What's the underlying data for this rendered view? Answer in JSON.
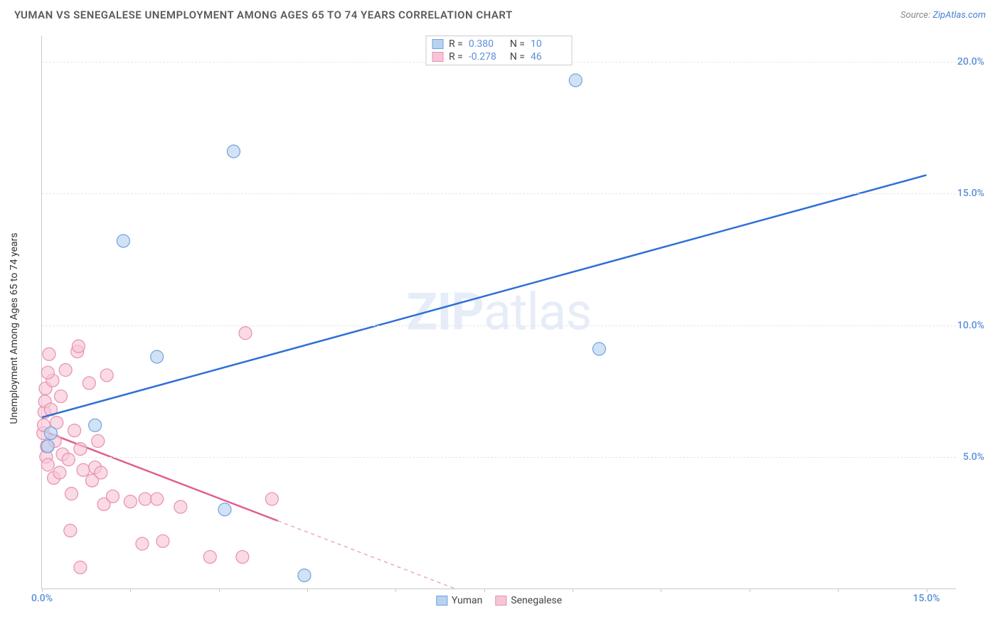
{
  "header": {
    "title": "YUMAN VS SENEGALESE UNEMPLOYMENT AMONG AGES 65 TO 74 YEARS CORRELATION CHART",
    "source_prefix": "Source: ",
    "source_link": "ZipAtlas.com"
  },
  "ylabel": "Unemployment Among Ages 65 to 74 years",
  "watermark_bold": "ZIP",
  "watermark_rest": "atlas",
  "chart": {
    "type": "scatter",
    "xlim": [
      0,
      15.5
    ],
    "ylim": [
      0,
      21
    ],
    "yticks": [
      {
        "v": 5.0,
        "label": "5.0%"
      },
      {
        "v": 10.0,
        "label": "10.0%"
      },
      {
        "v": 15.0,
        "label": "15.0%"
      },
      {
        "v": 20.0,
        "label": "20.0%"
      }
    ],
    "xticks_labeled": [
      {
        "v": 0.0,
        "label": "0.0%"
      },
      {
        "v": 15.0,
        "label": "15.0%"
      }
    ],
    "xticks_minor": [
      1.5,
      3.0,
      4.5,
      6.0,
      7.5,
      9.0,
      10.5,
      12.0,
      13.5
    ],
    "grid_color": "#e6e6e6",
    "axis_color": "#c8c8c8",
    "background_color": "#ffffff",
    "series": [
      {
        "name": "Yuman",
        "color_fill": "#b8d2f0",
        "color_stroke": "#6fa3e0",
        "line_color": "#2e6fd6",
        "r_value": "0.380",
        "n_value": "10",
        "marker_radius": 9,
        "trend": {
          "x1": 0.0,
          "y1": 6.5,
          "x2": 15.0,
          "y2": 15.7,
          "solid_until_x": 15.0
        },
        "points": [
          {
            "x": 0.1,
            "y": 5.4
          },
          {
            "x": 0.15,
            "y": 5.9
          },
          {
            "x": 0.9,
            "y": 6.2
          },
          {
            "x": 1.95,
            "y": 8.8
          },
          {
            "x": 1.38,
            "y": 13.2
          },
          {
            "x": 3.1,
            "y": 3.0
          },
          {
            "x": 4.45,
            "y": 0.5
          },
          {
            "x": 3.25,
            "y": 16.6
          },
          {
            "x": 9.05,
            "y": 19.3
          },
          {
            "x": 9.45,
            "y": 9.1
          }
        ]
      },
      {
        "name": "Senegalese",
        "color_fill": "#f7c6d6",
        "color_stroke": "#e88fb0",
        "line_color": "#e05f8c",
        "r_value": "-0.278",
        "n_value": "46",
        "marker_radius": 9,
        "trend": {
          "x1": 0.0,
          "y1": 6.0,
          "x2": 7.0,
          "y2": 0.0,
          "solid_until_x": 4.0
        },
        "points": [
          {
            "x": 0.02,
            "y": 5.9
          },
          {
            "x": 0.03,
            "y": 6.2
          },
          {
            "x": 0.04,
            "y": 6.7
          },
          {
            "x": 0.05,
            "y": 7.1
          },
          {
            "x": 0.06,
            "y": 7.6
          },
          {
            "x": 0.07,
            "y": 5.0
          },
          {
            "x": 0.08,
            "y": 5.4
          },
          {
            "x": 0.1,
            "y": 4.7
          },
          {
            "x": 0.12,
            "y": 8.9
          },
          {
            "x": 0.15,
            "y": 6.8
          },
          {
            "x": 0.18,
            "y": 7.9
          },
          {
            "x": 0.2,
            "y": 4.2
          },
          {
            "x": 0.22,
            "y": 5.6
          },
          {
            "x": 0.25,
            "y": 6.3
          },
          {
            "x": 0.3,
            "y": 4.4
          },
          {
            "x": 0.32,
            "y": 7.3
          },
          {
            "x": 0.35,
            "y": 5.1
          },
          {
            "x": 0.4,
            "y": 8.3
          },
          {
            "x": 0.45,
            "y": 4.9
          },
          {
            "x": 0.5,
            "y": 3.6
          },
          {
            "x": 0.55,
            "y": 6.0
          },
          {
            "x": 0.6,
            "y": 9.0
          },
          {
            "x": 0.62,
            "y": 9.2
          },
          {
            "x": 0.65,
            "y": 5.3
          },
          {
            "x": 0.7,
            "y": 4.5
          },
          {
            "x": 0.8,
            "y": 7.8
          },
          {
            "x": 0.85,
            "y": 4.1
          },
          {
            "x": 0.48,
            "y": 2.2
          },
          {
            "x": 0.9,
            "y": 4.6
          },
          {
            "x": 0.95,
            "y": 5.6
          },
          {
            "x": 1.0,
            "y": 4.4
          },
          {
            "x": 1.1,
            "y": 8.1
          },
          {
            "x": 1.05,
            "y": 3.2
          },
          {
            "x": 1.2,
            "y": 3.5
          },
          {
            "x": 0.65,
            "y": 0.8
          },
          {
            "x": 1.5,
            "y": 3.3
          },
          {
            "x": 1.75,
            "y": 3.4
          },
          {
            "x": 1.95,
            "y": 3.4
          },
          {
            "x": 1.7,
            "y": 1.7
          },
          {
            "x": 2.05,
            "y": 1.8
          },
          {
            "x": 2.35,
            "y": 3.1
          },
          {
            "x": 2.85,
            "y": 1.2
          },
          {
            "x": 3.45,
            "y": 9.7
          },
          {
            "x": 3.4,
            "y": 1.2
          },
          {
            "x": 3.9,
            "y": 3.4
          },
          {
            "x": 0.1,
            "y": 8.2
          }
        ]
      }
    ]
  },
  "legend_top": {
    "r_label": "R =",
    "n_label": "N ="
  },
  "legend_bottom": {
    "items": [
      "Yuman",
      "Senegalese"
    ]
  }
}
